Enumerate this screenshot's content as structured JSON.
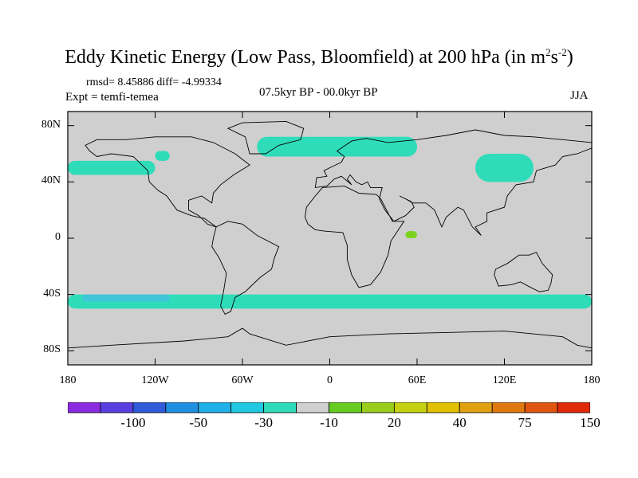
{
  "title": {
    "main": "Eddy Kinetic Energy (Low Pass, Bloomfield) at 200 hPa (in m",
    "sup1": "2",
    "mid": "s",
    "sup2": "-2",
    "end": ")"
  },
  "stats": "rmsd= 8.45886 diff= -4.99334",
  "experiment": "Expt = temfi-temea",
  "period": "07.5kyr BP - 00.0kyr BP",
  "season": "JJA",
  "map": {
    "lon_range": [
      -180,
      180
    ],
    "lat_range": [
      -90,
      90
    ],
    "y_ticks": [
      {
        "label": "80N",
        "lat": 80
      },
      {
        "label": "40N",
        "lat": 40
      },
      {
        "label": "0",
        "lat": 0
      },
      {
        "label": "40S",
        "lat": -40
      },
      {
        "label": "80S",
        "lat": -80
      }
    ],
    "x_ticks": [
      {
        "label": "180",
        "lon": -180
      },
      {
        "label": "120W",
        "lon": -120
      },
      {
        "label": "60W",
        "lon": -60
      },
      {
        "label": "0",
        "lon": 0
      },
      {
        "label": "60E",
        "lon": 60
      },
      {
        "label": "120E",
        "lon": 120
      },
      {
        "label": "180",
        "lon": 180
      }
    ],
    "background_color": "#cfcfcf",
    "negative_fill_color": "#2fdcba",
    "deep_negative_fill_color": "#3fc5d8",
    "positive_fill_color": "#7ed321",
    "regions": [
      {
        "value": "-10 to -30",
        "level": "neg",
        "lon": [
          -180,
          -120
        ],
        "lat": [
          45,
          55
        ]
      },
      {
        "value": "-10 to -30",
        "level": "neg",
        "lon": [
          -120,
          -110
        ],
        "lat": [
          55,
          62
        ]
      },
      {
        "value": "-10 to -30",
        "level": "neg",
        "lon": [
          -50,
          60
        ],
        "lat": [
          58,
          72
        ]
      },
      {
        "value": "-10 to -30",
        "level": "neg",
        "lon": [
          100,
          140
        ],
        "lat": [
          40,
          60
        ]
      },
      {
        "value": "-10 to -30",
        "level": "neg",
        "lon": [
          -180,
          180
        ],
        "lat": [
          -50,
          -40
        ]
      },
      {
        "value": "-30 to -50",
        "level": "deep",
        "lon": [
          -170,
          -110
        ],
        "lat": [
          -45,
          -40
        ]
      },
      {
        "value": "10 to 20",
        "level": "pos",
        "lon": [
          52,
          60
        ],
        "lat": [
          0,
          5
        ]
      }
    ]
  },
  "colorbar": {
    "colors": [
      "#8a2be2",
      "#5a3fe0",
      "#2f5ad8",
      "#1f8fe0",
      "#1fb0e8",
      "#20c8e0",
      "#2fdcba",
      "#cfcfcf",
      "#66cc22",
      "#9acd1a",
      "#c4d010",
      "#e0c000",
      "#e0a010",
      "#e07a10",
      "#e05510",
      "#e02a08"
    ],
    "labels": [
      {
        "text": "-100",
        "index": 2
      },
      {
        "text": "-50",
        "index": 4
      },
      {
        "text": "-30",
        "index": 6
      },
      {
        "text": "-10",
        "index": 8
      },
      {
        "text": "20",
        "index": 10
      },
      {
        "text": "40",
        "index": 12
      },
      {
        "text": "75",
        "index": 14
      },
      {
        "text": "150",
        "index": 16
      }
    ]
  }
}
